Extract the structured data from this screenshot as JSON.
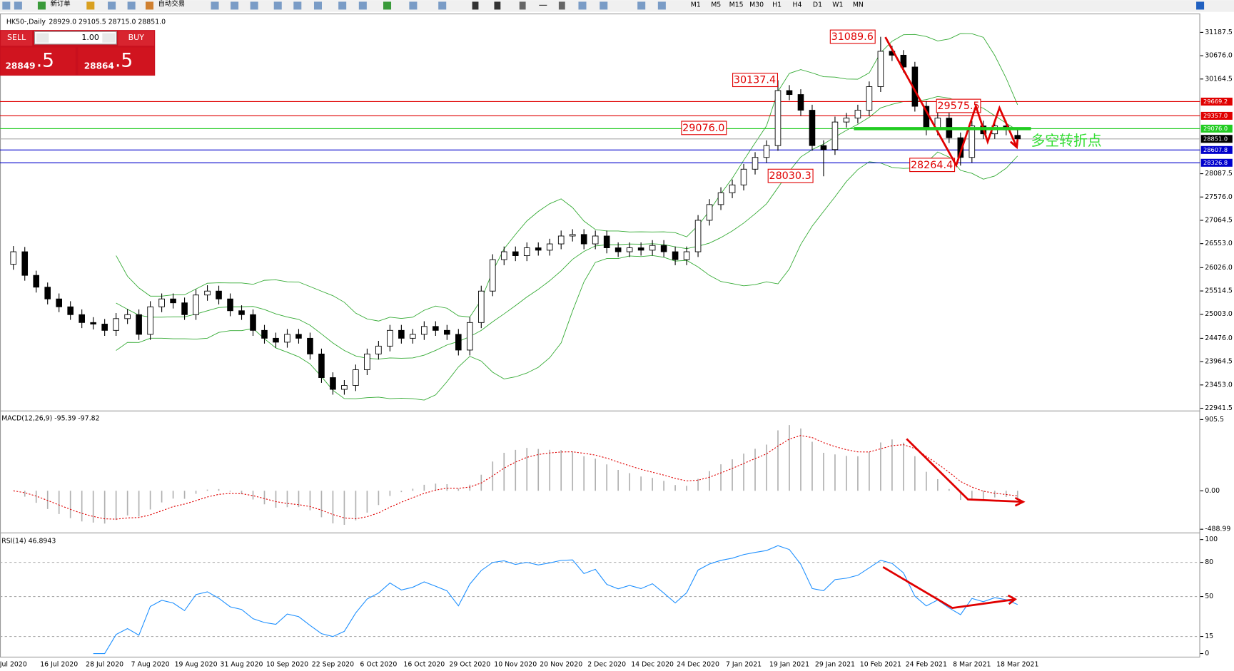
{
  "toolbar": {
    "new_order": "新订单",
    "auto_trading": "自动交易",
    "timeframes": [
      "M1",
      "M5",
      "M15",
      "M30",
      "H1",
      "H4",
      "D1",
      "W1",
      "MN"
    ]
  },
  "trade_panel": {
    "sell": "SELL",
    "lots": "1.00",
    "buy": "BUY",
    "bid_main": "28849",
    "bid_pips": ".5",
    "ask_main": "28864",
    "ask_pips": ".5"
  },
  "chart_data": [
    {
      "type": "candlestick",
      "title": "HK50-,Daily",
      "subtitle": "28929.0 29105.5 28715.0 28851.0",
      "categories": [
        "Jul 2020",
        null,
        null,
        null,
        "16 Jul 2020",
        null,
        null,
        null,
        "28 Jul 2020",
        null,
        null,
        null,
        "7 Aug 2020",
        null,
        null,
        null,
        "19 Aug 2020",
        null,
        null,
        null,
        "31 Aug 2020",
        null,
        null,
        null,
        "10 Sep 2020",
        null,
        null,
        null,
        "22 Sep 2020",
        null,
        null,
        null,
        "6 Oct 2020",
        null,
        null,
        null,
        "16 Oct 2020",
        null,
        null,
        null,
        "29 Oct 2020",
        null,
        null,
        null,
        "10 Nov 2020",
        null,
        null,
        null,
        "20 Nov 2020",
        null,
        null,
        null,
        "2 Dec 2020",
        null,
        null,
        null,
        "14 Dec 2020",
        null,
        null,
        null,
        "24 Dec 2020",
        null,
        null,
        null,
        "7 Jan 2021",
        null,
        null,
        null,
        "19 Jan 2021",
        null,
        null,
        null,
        "29 Jan 2021",
        null,
        null,
        null,
        "10 Feb 2021",
        null,
        null,
        null,
        "24 Feb 2021",
        null,
        null,
        null,
        "8 Mar 2021",
        null,
        null,
        null,
        "18 Mar 2021"
      ],
      "open": [
        26100,
        26375,
        25857,
        25598,
        25340,
        25167,
        24995,
        24822,
        24788,
        24650,
        24908,
        24995,
        24563,
        25167,
        25340,
        25254,
        24995,
        25426,
        25512,
        25340,
        25081,
        24995,
        24650,
        24477,
        24391,
        24563,
        24477,
        24132,
        23614,
        23356,
        23442,
        23787,
        24132,
        24305,
        24650,
        24477,
        24563,
        24736,
        24650,
        24563,
        24218,
        24822,
        25512,
        26202,
        26375,
        26289,
        26461,
        26409,
        26547,
        26720,
        26754,
        26547,
        26720,
        26461,
        26375,
        26461,
        26409,
        26513,
        26375,
        26202,
        26375,
        27065,
        27410,
        27669,
        27841,
        28186,
        28445,
        28704,
        29911,
        29824,
        29480,
        28704,
        28617,
        29221,
        29307,
        29480,
        29997,
        30773,
        30687,
        30428,
        29566,
        29049,
        29307,
        28876,
        28445,
        29135,
        28962,
        29135,
        28929
      ],
      "high": [
        26500,
        26480,
        25960,
        25700,
        25460,
        25290,
        25110,
        24940,
        24900,
        25030,
        25120,
        25110,
        25290,
        25460,
        25460,
        25370,
        25550,
        25640,
        25630,
        25460,
        25200,
        25110,
        24770,
        24600,
        24680,
        24680,
        24600,
        24250,
        23730,
        23560,
        23900,
        24250,
        24420,
        24770,
        24770,
        24680,
        24850,
        24850,
        24770,
        24680,
        24940,
        25630,
        26320,
        26490,
        26490,
        26580,
        26580,
        26660,
        26840,
        26870,
        26870,
        26840,
        26840,
        26580,
        26580,
        26580,
        26630,
        26630,
        26490,
        26490,
        27180,
        27530,
        27790,
        27960,
        28300,
        28560,
        28820,
        30137.4,
        30030,
        29940,
        29600,
        28820,
        29340,
        29420,
        29600,
        30110,
        31089.6,
        30890,
        30800,
        30540,
        29680,
        29575.5,
        29420,
        28990,
        29250,
        29250,
        29250,
        29250,
        29105.5
      ],
      "low": [
        25980,
        25740,
        25480,
        25220,
        25050,
        24880,
        24700,
        24670,
        24530,
        24530,
        24790,
        24440,
        24440,
        25050,
        25130,
        24880,
        24880,
        25300,
        25220,
        24960,
        24880,
        24530,
        24360,
        24270,
        24270,
        24360,
        24010,
        23500,
        23240,
        23240,
        23320,
        23670,
        24010,
        24190,
        24360,
        24360,
        24440,
        24530,
        24440,
        24100,
        24100,
        24700,
        25400,
        26080,
        26170,
        26170,
        26290,
        26290,
        26430,
        26600,
        26430,
        26430,
        26340,
        26260,
        26260,
        26290,
        26290,
        26260,
        26080,
        26080,
        26260,
        26950,
        27290,
        27550,
        27720,
        28070,
        28330,
        28590,
        29700,
        29360,
        28590,
        28030.3,
        28500,
        29100,
        29190,
        29360,
        29880,
        30560,
        30310,
        29450,
        28930,
        28930,
        28760,
        28264.4,
        28330,
        28850,
        28850,
        28930,
        28715
      ],
      "close": [
        26375,
        25857,
        25598,
        25340,
        25167,
        24995,
        24822,
        24788,
        24650,
        24908,
        24995,
        24563,
        25167,
        25340,
        25254,
        24995,
        25426,
        25512,
        25340,
        25081,
        24995,
        24650,
        24477,
        24391,
        24563,
        24477,
        24132,
        23614,
        23356,
        23442,
        23787,
        24132,
        24305,
        24650,
        24477,
        24563,
        24736,
        24650,
        24563,
        24218,
        24822,
        25512,
        26202,
        26375,
        26289,
        26461,
        26409,
        26547,
        26720,
        26754,
        26547,
        26720,
        26461,
        26375,
        26461,
        26409,
        26513,
        26375,
        26202,
        26375,
        27065,
        27410,
        27669,
        27841,
        28186,
        28445,
        28704,
        29911,
        29824,
        29480,
        28704,
        28617,
        29221,
        29307,
        29480,
        29997,
        30773,
        30687,
        30428,
        29566,
        29049,
        29307,
        28876,
        28445,
        29135,
        28962,
        29135,
        29049,
        28851
      ],
      "up_color": "#ffffff",
      "down_color": "#000000",
      "band_color": "#33aa33",
      "ylim": [
        22907.5,
        31549.75
      ],
      "yticks": [
        31187.5,
        {
          "value": 30676,
          "label": "30676.0"
        },
        30164.5,
        28087.5,
        {
          "value": 27576,
          "label": "27576.0"
        },
        27064.5,
        {
          "value": 26553,
          "label": "26553.0"
        },
        {
          "value": 26026,
          "label": "26026.0"
        },
        25514.5,
        {
          "value": 25003,
          "label": "25003.0"
        },
        {
          "value": 24476,
          "label": "24476.0"
        },
        23964.5,
        {
          "value": 23453,
          "label": "23453.0"
        },
        22941.5
      ],
      "levels": [
        {
          "value": 29669.2,
          "color": "#e00000"
        },
        {
          "value": 29357,
          "label": "29357.0",
          "color": "#e00000"
        },
        {
          "value": 29076,
          "label": "29076.0",
          "color": "#22cc22"
        },
        {
          "value": 28851,
          "label": "28851.0",
          "color": "#000000"
        },
        {
          "value": 28607.8,
          "color": "#0000cc"
        },
        {
          "value": 28326.8,
          "color": "#0000cc"
        }
      ],
      "annotations": [
        "31089.6",
        "30137.4",
        "29575.5",
        "29076.0",
        "28030.3",
        "28264.4",
        "多空转折点"
      ]
    },
    {
      "type": "macd",
      "title": "MACD(12,26,9) -95.39 -97.82",
      "color": "#b0b0b0",
      "signal_color": "#e00000",
      "ylim": [
        -520,
        1000
      ],
      "yticks": [
        905.5,
        {
          "value": 0,
          "label": "0.00"
        },
        -488.99
      ]
    },
    {
      "type": "rsi",
      "title": "RSI(14) 46.8943",
      "color": "#1e90ff",
      "grid": true,
      "ylim": [
        0,
        100
      ],
      "yticks": [
        100,
        80,
        50,
        15,
        0
      ]
    }
  ]
}
